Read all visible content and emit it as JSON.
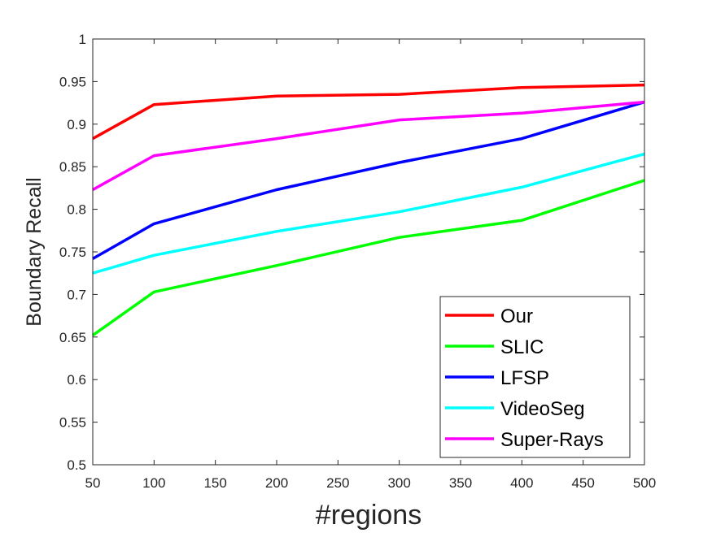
{
  "chart_data": {
    "type": "line",
    "title": "",
    "xlabel": "#regions",
    "ylabel": "Boundary Recall",
    "x": [
      50,
      100,
      200,
      300,
      400,
      500
    ],
    "xlim": [
      50,
      500
    ],
    "ylim": [
      0.5,
      1
    ],
    "xticks": [
      "50",
      "100",
      "150",
      "200",
      "250",
      "300",
      "350",
      "400",
      "450",
      "500"
    ],
    "yticks": [
      "0.5",
      "0.55",
      "0.6",
      "0.65",
      "0.7",
      "0.75",
      "0.8",
      "0.85",
      "0.9",
      "0.95",
      "1"
    ],
    "grid": false,
    "legend_position": "bottom-right",
    "series": [
      {
        "name": "Our",
        "color": "#ff0000",
        "values": [
          0.883,
          0.923,
          0.933,
          0.935,
          0.943,
          0.946
        ]
      },
      {
        "name": "SLIC",
        "color": "#00ff00",
        "values": [
          0.652,
          0.703,
          0.734,
          0.767,
          0.787,
          0.834
        ]
      },
      {
        "name": "LFSP",
        "color": "#0000ff",
        "values": [
          0.742,
          0.783,
          0.823,
          0.855,
          0.883,
          0.926
        ]
      },
      {
        "name": "VideoSeg",
        "color": "#00ffff",
        "values": [
          0.725,
          0.746,
          0.774,
          0.797,
          0.826,
          0.865
        ]
      },
      {
        "name": "Super-Rays",
        "color": "#ff00ff",
        "values": [
          0.823,
          0.863,
          0.883,
          0.905,
          0.913,
          0.926
        ]
      }
    ]
  }
}
